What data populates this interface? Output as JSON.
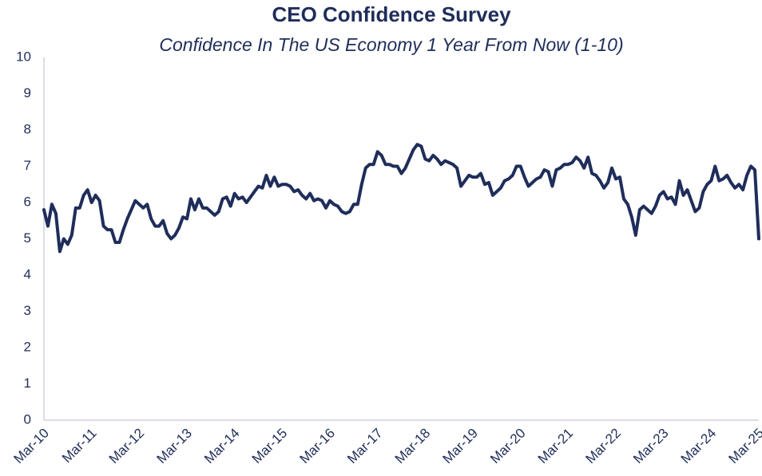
{
  "chart_data": {
    "type": "line",
    "title": "CEO Confidence Survey",
    "subtitle": "Confidence In The US Economy 1 Year From Now (1-10)",
    "categories": [
      "Mar-10",
      null,
      null,
      null,
      null,
      null,
      null,
      null,
      null,
      null,
      null,
      null,
      "Mar-11",
      null,
      null,
      null,
      null,
      null,
      null,
      null,
      null,
      null,
      null,
      null,
      "Mar-12",
      null,
      null,
      null,
      null,
      null,
      null,
      null,
      null,
      null,
      null,
      null,
      "Mar-13",
      null,
      null,
      null,
      null,
      null,
      null,
      null,
      null,
      null,
      null,
      null,
      "Mar-14",
      null,
      null,
      null,
      null,
      null,
      null,
      null,
      null,
      null,
      null,
      null,
      "Mar-15",
      null,
      null,
      null,
      null,
      null,
      null,
      null,
      null,
      null,
      null,
      null,
      "Mar-16",
      null,
      null,
      null,
      null,
      null,
      null,
      null,
      null,
      null,
      null,
      null,
      "Mar-17",
      null,
      null,
      null,
      null,
      null,
      null,
      null,
      null,
      null,
      null,
      null,
      "Mar-18",
      null,
      null,
      null,
      null,
      null,
      null,
      null,
      null,
      null,
      null,
      null,
      "Mar-19",
      null,
      null,
      null,
      null,
      null,
      null,
      null,
      null,
      null,
      null,
      null,
      "Mar-20",
      null,
      null,
      null,
      null,
      null,
      null,
      null,
      null,
      null,
      null,
      null,
      "Mar-21",
      null,
      null,
      null,
      null,
      null,
      null,
      null,
      null,
      null,
      null,
      null,
      "Mar-22",
      null,
      null,
      null,
      null,
      null,
      null,
      null,
      null,
      null,
      null,
      null,
      "Mar-23",
      null,
      null,
      null,
      null,
      null,
      null,
      null,
      null,
      null,
      null,
      null,
      "Mar-24",
      null,
      null,
      null,
      null,
      null,
      null,
      null,
      null,
      null,
      null,
      null,
      "Mar-25"
    ],
    "values": [
      5.8,
      5.35,
      5.95,
      5.7,
      4.65,
      5.0,
      4.85,
      5.1,
      5.85,
      5.85,
      6.2,
      6.35,
      6.0,
      6.2,
      6.05,
      5.35,
      5.25,
      5.25,
      4.9,
      4.9,
      5.25,
      5.55,
      5.8,
      6.05,
      5.95,
      5.85,
      5.95,
      5.55,
      5.35,
      5.35,
      5.5,
      5.15,
      5.0,
      5.1,
      5.3,
      5.6,
      5.55,
      6.1,
      5.8,
      6.1,
      5.85,
      5.85,
      5.75,
      5.65,
      5.75,
      6.1,
      6.15,
      5.9,
      6.25,
      6.1,
      6.15,
      6.0,
      6.15,
      6.3,
      6.45,
      6.4,
      6.75,
      6.45,
      6.7,
      6.45,
      6.5,
      6.5,
      6.45,
      6.3,
      6.35,
      6.2,
      6.1,
      6.25,
      6.05,
      6.1,
      6.05,
      5.85,
      6.05,
      5.95,
      5.9,
      5.75,
      5.7,
      5.75,
      5.95,
      5.95,
      6.5,
      6.95,
      7.05,
      7.05,
      7.4,
      7.3,
      7.05,
      7.05,
      7.0,
      7.0,
      6.8,
      6.95,
      7.2,
      7.45,
      7.6,
      7.55,
      7.2,
      7.15,
      7.3,
      7.2,
      7.05,
      7.15,
      7.1,
      7.05,
      6.95,
      6.45,
      6.6,
      6.75,
      6.7,
      6.7,
      6.8,
      6.5,
      6.55,
      6.2,
      6.3,
      6.4,
      6.6,
      6.65,
      6.75,
      7.0,
      7.0,
      6.7,
      6.45,
      6.55,
      6.65,
      6.7,
      6.9,
      6.85,
      6.45,
      6.9,
      6.95,
      7.05,
      7.05,
      7.1,
      7.25,
      7.15,
      6.95,
      7.25,
      6.8,
      6.75,
      6.6,
      6.4,
      6.55,
      6.95,
      6.65,
      6.7,
      6.1,
      5.95,
      5.6,
      5.1,
      5.8,
      5.9,
      5.8,
      5.7,
      5.9,
      6.2,
      6.3,
      6.1,
      6.15,
      5.95,
      6.6,
      6.2,
      6.35,
      6.05,
      5.75,
      5.85,
      6.3,
      6.5,
      6.6,
      7.0,
      6.6,
      6.65,
      6.75,
      6.55,
      6.4,
      6.5,
      6.35,
      6.75,
      7.0,
      6.9,
      5.0
    ],
    "color": "#1f2d5a",
    "ylim": [
      0,
      10
    ],
    "yticks": [
      0,
      1,
      2,
      3,
      4,
      5,
      6,
      7,
      8,
      9,
      10
    ],
    "grid": false
  }
}
